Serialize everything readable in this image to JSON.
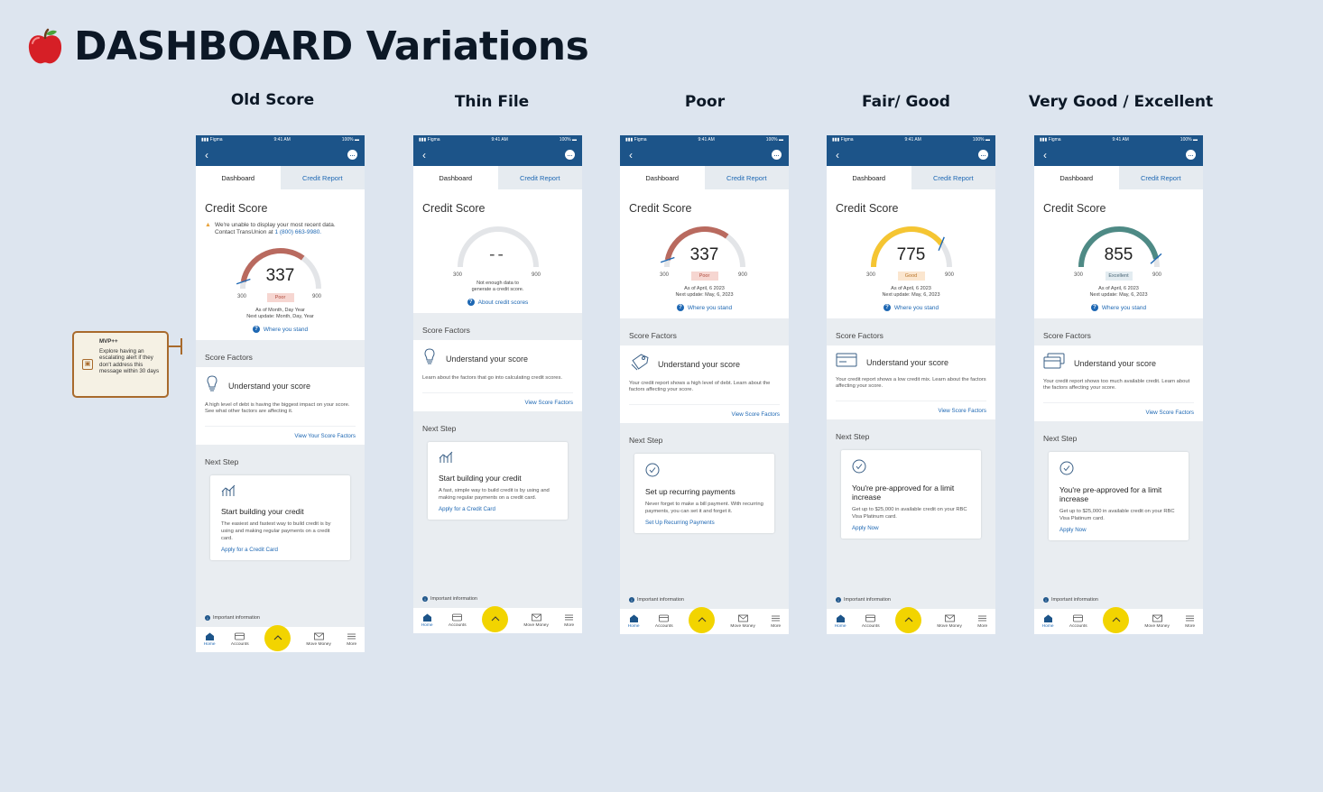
{
  "page": {
    "title": "DASHBOARD Variations"
  },
  "colors": {
    "navy": "#1c5489",
    "link": "#1d67b3",
    "fab": "#f2d400",
    "poor": "#b96a5f",
    "good": "#f5c532",
    "excellent": "#4e8a85",
    "unknown": "#e3e5e8"
  },
  "common": {
    "status": {
      "carrier": "Figma",
      "time": "9:41 AM",
      "battery": "100%"
    },
    "tabs": [
      "Dashboard",
      "Credit Report"
    ],
    "score_heading": "Credit Score",
    "score_factors_label": "Score Factors",
    "understand_label": "Understand your score",
    "next_step_label": "Next Step",
    "important": "Important information",
    "nav": {
      "home": "Home",
      "accounts": "Accounts",
      "move": "Move Money",
      "more": "More"
    },
    "range_min": "300",
    "range_max": "900"
  },
  "note": {
    "title": "MVP++",
    "body": "Explore having an escalating alert if they don't address this message within 30 days"
  },
  "phones": [
    {
      "column_title": "Old Score",
      "alert_line1": "We're unable to display your most recent data.",
      "alert_line2": "Contact TransUnion at",
      "alert_phone": "1 (800) 663-9980.",
      "score": "337",
      "score_fraction": 0.06,
      "band": "Poor",
      "band_key": "poor",
      "asof": "As of Month, Day Year",
      "next_update": "Next update: Month, Day, Year",
      "info_link": "Where you stand",
      "factor_icon": "lightbulb-icon",
      "factor_desc": "A high level of debt is having the biggest impact on your score. See what other factors are affecting it.",
      "factor_link": "View Your Score Factors",
      "next_icon": "chart-icon",
      "next_title": "Start building your credit",
      "next_desc": "The easiest and fastest way to build credit is by using and making regular payments on a credit card.",
      "next_cta": "Apply for a Credit Card"
    },
    {
      "column_title": "Thin File",
      "score": "--",
      "score_fraction": 0,
      "band": "",
      "band_key": "unknown",
      "asof": "Not enough data to",
      "next_update": "generate a credit score.",
      "info_link": "About credit scores",
      "factor_icon": "lightbulb-icon",
      "factor_desc": "Learn about the factors that go into calculating credit scores.",
      "factor_link": "View Score Factors",
      "next_icon": "chart-icon",
      "next_title": "Start building your credit",
      "next_desc": "A fast, simple way to build credit is by using and making regular payments on a credit card.",
      "next_cta": "Apply for a Credit Card"
    },
    {
      "column_title": "Poor",
      "score": "337",
      "score_fraction": 0.06,
      "band": "Poor",
      "band_key": "poor",
      "asof": "As of April, 6 2023",
      "next_update": "Next update: May, 6, 2023",
      "info_link": "Where you stand",
      "factor_icon": "tag-icon",
      "factor_desc": "Your credit report shows a high level of debt. Learn about the factors affecting your score.",
      "factor_link": "View Score Factors",
      "next_icon": "check-circle-icon",
      "next_title": "Set up recurring payments",
      "next_desc": "Never forget to make a bill payment. With recurring payments, you can set it and forget it.",
      "next_cta": "Set Up Recurring Payments"
    },
    {
      "column_title": "Fair/ Good",
      "score": "775",
      "score_fraction": 0.79,
      "band": "Good",
      "band_key": "good",
      "asof": "As of April, 6 2023",
      "next_update": "Next update: May, 6, 2023",
      "info_link": "Where you stand",
      "factor_icon": "card-icon",
      "factor_desc": "Your credit report shows a low credit mix. Learn about the factors affecting your score.",
      "factor_link": "View Score Factors",
      "next_icon": "check-circle-icon",
      "next_title": "You're pre-approved for a limit increase",
      "next_desc": "Get up to $25,000 in available credit on your RBC Visa Platinum card.",
      "next_cta": "Apply Now"
    },
    {
      "column_title": "Very Good / Excellent",
      "score": "855",
      "score_fraction": 0.93,
      "band": "Excellent",
      "band_key": "excellent",
      "asof": "As of April, 6 2023",
      "next_update": "Next update: May, 6, 2023",
      "info_link": "Where you stand",
      "factor_icon": "cards-icon",
      "factor_desc": "Your credit report shows too much available credit. Learn about the factors affecting your score.",
      "factor_link": "View Score Factors",
      "next_icon": "check-circle-icon",
      "next_title": "You're pre-approved for a limit increase",
      "next_desc": "Get up to $25,000 in available credit on your RBC Visa Platinum card.",
      "next_cta": "Apply Now"
    }
  ]
}
